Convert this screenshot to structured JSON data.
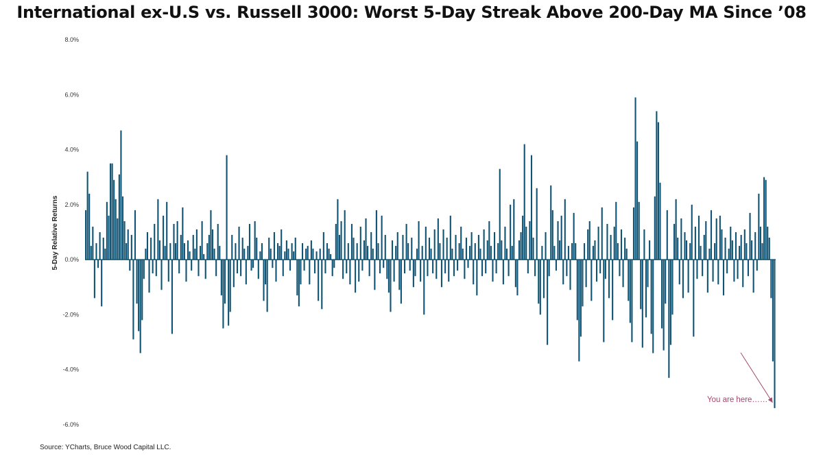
{
  "chart_data": {
    "type": "bar",
    "title": "International ex-U.S vs. Russell 3000: Worst 5-Day Streak Above 200-Day MA Since ’08",
    "xlabel": "",
    "ylabel": "5-Day Relative Returns",
    "ylim": [
      -6.0,
      8.0
    ],
    "y_ticks": [
      "8.0%",
      "6.0%",
      "4.0%",
      "2.0%",
      "0.0%",
      "-2.0%",
      "-4.0%",
      "-6.0%"
    ],
    "y_tick_values": [
      8,
      6,
      4,
      2,
      0,
      -2,
      -4,
      -6
    ],
    "grid": false,
    "bar_color": "#0f5474",
    "annotation": {
      "text": "You are here……",
      "color": "#a4456d"
    },
    "series": [
      {
        "values": [
          1.8,
          3.2,
          2.4,
          0.5,
          1.2,
          -1.4,
          0.6,
          -0.3,
          1.0,
          -1.7,
          0.8,
          0.4,
          2.1,
          1.6,
          3.5,
          3.5,
          2.9,
          2.2,
          1.5,
          3.1,
          4.7,
          2.3,
          1.4,
          0.6,
          1.1,
          -0.4,
          0.9,
          -2.9,
          1.8,
          -1.6,
          -2.6,
          -3.4,
          -2.2,
          -0.7,
          0.4,
          1.0,
          -1.2,
          0.8,
          -0.5,
          1.3,
          -0.6,
          2.2,
          0.7,
          -1.1,
          1.6,
          0.5,
          2.1,
          -0.8,
          0.6,
          -2.7,
          1.3,
          0.6,
          1.4,
          -0.5,
          0.9,
          1.9,
          0.6,
          -0.8,
          0.7,
          0.3,
          -0.4,
          0.9,
          0.4,
          1.1,
          -0.6,
          0.5,
          1.4,
          0.2,
          -0.7,
          0.6,
          0.9,
          1.8,
          1.1,
          0.4,
          -0.6,
          1.3,
          0.5,
          -1.3,
          -2.5,
          -1.6,
          3.8,
          -2.4,
          -1.9,
          0.9,
          -1.0,
          0.6,
          -0.5,
          1.2,
          -0.6,
          0.8,
          0.4,
          -0.9,
          0.5,
          1.3,
          -0.4,
          -0.3,
          1.4,
          0.8,
          -0.7,
          0.3,
          0.6,
          -1.5,
          -0.9,
          -1.9,
          0.8,
          0.4,
          -0.3,
          1.0,
          -0.8,
          0.6,
          0.5,
          1.1,
          -0.6,
          0.3,
          0.7,
          0.4,
          -0.4,
          0.6,
          0.3,
          0.8,
          -1.3,
          -1.7,
          -0.9,
          0.6,
          -0.4,
          0.4,
          0.5,
          -0.9,
          0.7,
          0.4,
          -0.5,
          0.3,
          -1.5,
          0.4,
          -1.8,
          1.0,
          -0.5,
          0.6,
          0.4,
          0.2,
          -0.6,
          -0.3,
          1.3,
          2.2,
          0.9,
          1.4,
          -0.7,
          1.8,
          -0.5,
          0.6,
          -0.9,
          1.3,
          0.8,
          -1.2,
          0.6,
          -0.8,
          1.2,
          -0.4,
          0.7,
          1.5,
          0.5,
          -0.6,
          1.0,
          0.4,
          -1.1,
          1.8,
          0.6,
          -0.5,
          1.6,
          -0.3,
          0.9,
          -0.7,
          -1.2,
          -1.9,
          0.7,
          -0.8,
          0.5,
          1.0,
          -1.1,
          -1.6,
          0.9,
          -0.5,
          1.3,
          0.6,
          -0.4,
          0.8,
          -1.0,
          -0.6,
          0.4,
          1.4,
          -0.8,
          0.5,
          -2.0,
          1.2,
          -0.6,
          0.8,
          0.4,
          -0.5,
          1.1,
          -0.7,
          1.5,
          0.6,
          -1.0,
          1.1,
          -0.5,
          0.8,
          -0.8,
          1.6,
          0.4,
          -0.6,
          0.9,
          -0.4,
          0.6,
          1.2,
          0.4,
          -0.7,
          0.8,
          -0.3,
          0.5,
          1.0,
          -0.9,
          0.6,
          -1.3,
          0.9,
          0.4,
          -0.6,
          1.1,
          -0.5,
          0.7,
          1.4,
          0.5,
          -0.8,
          1.0,
          -0.5,
          0.6,
          3.3,
          0.7,
          -0.9,
          1.2,
          0.4,
          -0.6,
          2.0,
          0.5,
          2.2,
          -1.0,
          -1.3,
          0.7,
          1.0,
          1.6,
          4.2,
          1.2,
          -0.5,
          1.4,
          3.8,
          0.8,
          -0.6,
          2.6,
          -1.6,
          -2.0,
          0.5,
          -1.4,
          1.0,
          -3.1,
          -0.6,
          2.7,
          1.8,
          0.5,
          -0.4,
          1.4,
          0.7,
          1.6,
          -0.9,
          2.2,
          -0.6,
          0.5,
          -1.1,
          0.6,
          1.7,
          0.6,
          -2.2,
          -3.7,
          -2.8,
          -1.7,
          0.6,
          -1.0,
          1.1,
          1.4,
          -1.5,
          0.5,
          0.7,
          -0.8,
          1.2,
          -0.5,
          1.9,
          -3.0,
          -0.7,
          1.3,
          -1.4,
          0.9,
          -2.2,
          1.2,
          2.1,
          0.6,
          -0.6,
          1.1,
          -1.0,
          0.8,
          0.4,
          -1.5,
          -2.3,
          -3.0,
          1.9,
          5.9,
          4.3,
          2.1,
          -1.8,
          -3.2,
          1.1,
          -2.1,
          -1.0,
          0.7,
          -2.7,
          -3.4,
          2.3,
          5.4,
          5.0,
          2.8,
          -2.5,
          -3.3,
          -1.6,
          1.8,
          -4.3,
          -3.1,
          -2.0,
          1.3,
          2.2,
          0.8,
          -0.9,
          1.5,
          -1.4,
          1.0,
          0.7,
          -1.2,
          0.6,
          2.0,
          -2.8,
          1.2,
          -0.7,
          1.6,
          0.5,
          -0.6,
          0.9,
          1.4,
          -1.2,
          0.4,
          1.8,
          -0.8,
          0.6,
          1.5,
          -0.9,
          1.6,
          1.1,
          -1.3,
          0.8,
          -0.5,
          0.4,
          1.2,
          0.7,
          -0.8,
          1.0,
          -0.7,
          0.5,
          0.9,
          -1.0,
          1.1,
          0.6,
          -0.6,
          1.7,
          0.7,
          -1.2,
          1.0,
          -0.4,
          2.4,
          1.2,
          0.6,
          3.0,
          2.9,
          1.2,
          0.8,
          -1.4,
          -3.7,
          -5.4
        ]
      }
    ]
  },
  "source": "Source: YCharts, Bruce Wood Capital LLC."
}
